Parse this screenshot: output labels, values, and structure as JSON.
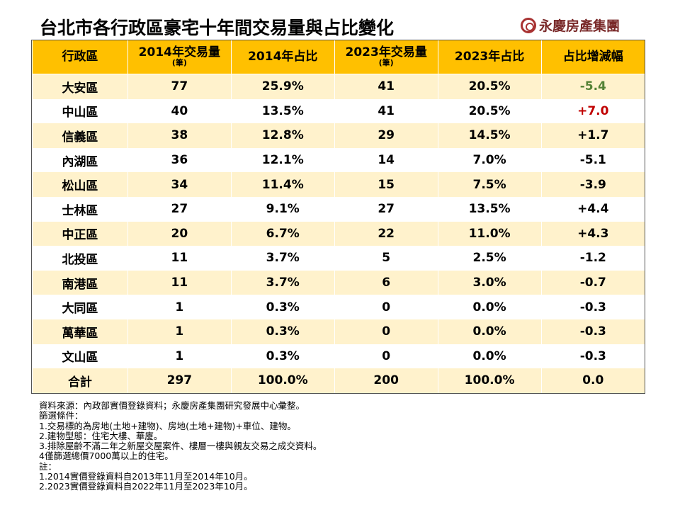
{
  "title": "台北市各行政區豪宅十年間交易量與占比變化",
  "logo": "永慶房產集團",
  "headers": [
    {
      "main": "行政區",
      "sub": ""
    },
    {
      "main": "2014年交易量",
      "sub": "(筆)"
    },
    {
      "main": "2014年占比",
      "sub": ""
    },
    {
      "main": "2023年交易量",
      "sub": "(筆)"
    },
    {
      "main": "2023年占比",
      "sub": ""
    },
    {
      "main": "占比增減幅",
      "sub": ""
    }
  ],
  "rows": [
    [
      "大安區",
      "77",
      "25.9%",
      "41",
      "20.5%",
      "-5.4"
    ],
    [
      "中山區",
      "40",
      "13.5%",
      "41",
      "20.5%",
      "+7.0"
    ],
    [
      "信義區",
      "38",
      "12.8%",
      "29",
      "14.5%",
      "+1.7"
    ],
    [
      "內湖區",
      "36",
      "12.1%",
      "14",
      "7.0%",
      "-5.1"
    ],
    [
      "松山區",
      "34",
      "11.4%",
      "15",
      "7.5%",
      "-3.9"
    ],
    [
      "士林區",
      "27",
      "9.1%",
      "27",
      "13.5%",
      "+4.4"
    ],
    [
      "中正區",
      "20",
      "6.7%",
      "22",
      "11.0%",
      "+4.3"
    ],
    [
      "北投區",
      "11",
      "3.7%",
      "5",
      "2.5%",
      "-1.2"
    ],
    [
      "南港區",
      "11",
      "3.7%",
      "6",
      "3.0%",
      "-0.7"
    ],
    [
      "大同區",
      "1",
      "0.3%",
      "0",
      "0.0%",
      "-0.3"
    ],
    [
      "萬華區",
      "1",
      "0.3%",
      "0",
      "0.0%",
      "-0.3"
    ],
    [
      "文山區",
      "1",
      "0.3%",
      "0",
      "0.0%",
      "-0.3"
    ],
    [
      "合計",
      "297",
      "100.0%",
      "200",
      "100.0%",
      "0.0"
    ]
  ],
  "highlight": {
    "min_color": "#548235",
    "max_color": "#C00000",
    "header_color": "#FFC000",
    "band_color": "#FFF2CC"
  },
  "notes": [
    "資料來源：內政部實價登錄資料；永慶房產集團研究發展中心彙整。",
    "篩選條件：",
    "1.交易標的為房地(土地+建物)、房地(土地+建物)+車位、建物。",
    "2.建物型態：住宅大樓、華廈。",
    "3.排除屋齡不滿二年之新屋交屋案件、樓層一樓與親友交易之成交資料。",
    "4僅篩選總價7000萬以上的住宅。",
    "註：",
    "1.2014實價登錄資料自2013年11月至2014年10月。",
    "2.2023實價登錄資料自2022年11月至2023年10月。"
  ]
}
